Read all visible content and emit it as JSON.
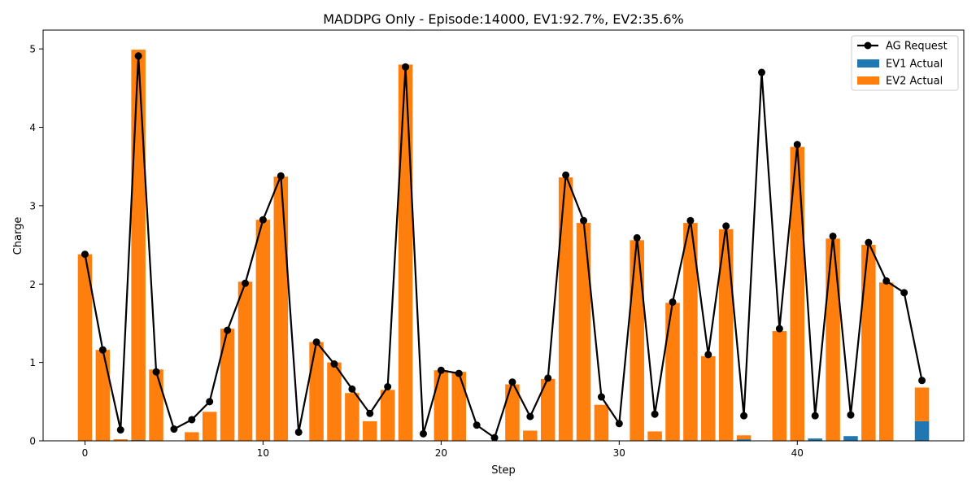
{
  "chart_data": {
    "type": "bar",
    "title": "MADDPG Only - Episode:14000, EV1:92.7%, EV2:35.6%",
    "xlabel": "Step",
    "ylabel": "Charge",
    "xlim": [
      -2.35,
      49.35
    ],
    "ylim": [
      0,
      5.24
    ],
    "xticks": [
      0,
      10,
      20,
      30,
      40
    ],
    "yticks": [
      0,
      1,
      2,
      3,
      4,
      5
    ],
    "grid": false,
    "legend_position": "upper-right",
    "steps": [
      0,
      1,
      2,
      3,
      4,
      5,
      6,
      7,
      8,
      9,
      10,
      11,
      12,
      13,
      14,
      15,
      16,
      17,
      18,
      19,
      20,
      21,
      22,
      23,
      24,
      25,
      26,
      27,
      28,
      29,
      30,
      31,
      32,
      33,
      34,
      35,
      36,
      37,
      38,
      39,
      40,
      41,
      42,
      43,
      44,
      45,
      46,
      47
    ],
    "series": [
      {
        "name": "AG Request",
        "kind": "line",
        "color": "#000000",
        "values": [
          2.38,
          1.16,
          0.14,
          4.91,
          0.88,
          0.15,
          0.27,
          0.5,
          1.41,
          2.01,
          2.82,
          3.38,
          0.11,
          1.26,
          0.98,
          0.66,
          0.35,
          0.69,
          4.77,
          0.09,
          0.9,
          0.86,
          0.2,
          0.04,
          0.75,
          0.31,
          0.8,
          3.39,
          2.81,
          0.56,
          0.22,
          2.59,
          0.34,
          1.77,
          2.81,
          1.1,
          2.74,
          0.32,
          4.7,
          1.43,
          3.78,
          0.32,
          2.61,
          0.33,
          2.53,
          2.04,
          1.89,
          0.77
        ]
      },
      {
        "name": "EV1 Actual",
        "kind": "bar",
        "color": "#1f77b4",
        "values": [
          0,
          0,
          0,
          0.01,
          0,
          0,
          0,
          0,
          0,
          0,
          0,
          0,
          0,
          0,
          0,
          0,
          0,
          0,
          0,
          0,
          0,
          0,
          0,
          0,
          0,
          0,
          0,
          0,
          0,
          0,
          0,
          0,
          0.01,
          0,
          0,
          0,
          0,
          0.02,
          0,
          0,
          0,
          0.03,
          0,
          0.06,
          0,
          0,
          0,
          0.25
        ]
      },
      {
        "name": "EV2 Actual",
        "kind": "bar",
        "color": "#ff7f0e",
        "values": [
          2.38,
          1.16,
          0.02,
          4.98,
          0.91,
          0,
          0.11,
          0.37,
          1.43,
          2.03,
          2.82,
          3.37,
          0,
          1.26,
          1.0,
          0.61,
          0.25,
          0.65,
          4.8,
          0,
          0.9,
          0.88,
          0,
          0,
          0.72,
          0.13,
          0.79,
          3.36,
          2.78,
          0.46,
          0,
          2.56,
          0.11,
          1.76,
          2.78,
          1.08,
          2.7,
          0.05,
          0,
          1.4,
          3.75,
          0,
          2.58,
          0,
          2.5,
          2.02,
          0,
          0.43
        ]
      }
    ]
  }
}
